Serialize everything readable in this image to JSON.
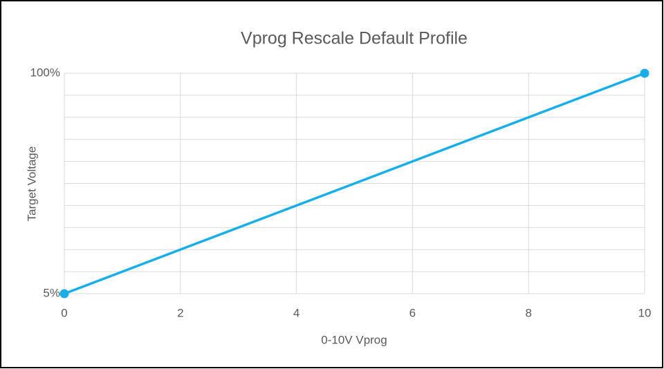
{
  "chart_data": {
    "type": "line",
    "title": "Vprog Rescale Default Profile",
    "xlabel": "0-10V Vprog",
    "ylabel": "Target Voltage",
    "x": [
      0,
      10
    ],
    "series": [
      {
        "name": "Target Voltage",
        "color": "#1aaee8",
        "values": [
          5,
          100
        ]
      }
    ],
    "xlim": [
      0,
      10
    ],
    "xticks": [
      0,
      2,
      4,
      6,
      8,
      10
    ],
    "ylim": [
      5,
      100
    ],
    "yticks": [
      {
        "value": 5,
        "label": "5%"
      },
      {
        "value": 100,
        "label": "100%"
      }
    ],
    "ygrid": [
      5,
      14.5,
      24,
      33.5,
      43,
      52.5,
      62,
      71.5,
      81,
      90.5,
      100
    ],
    "grid": true,
    "legend": false
  }
}
